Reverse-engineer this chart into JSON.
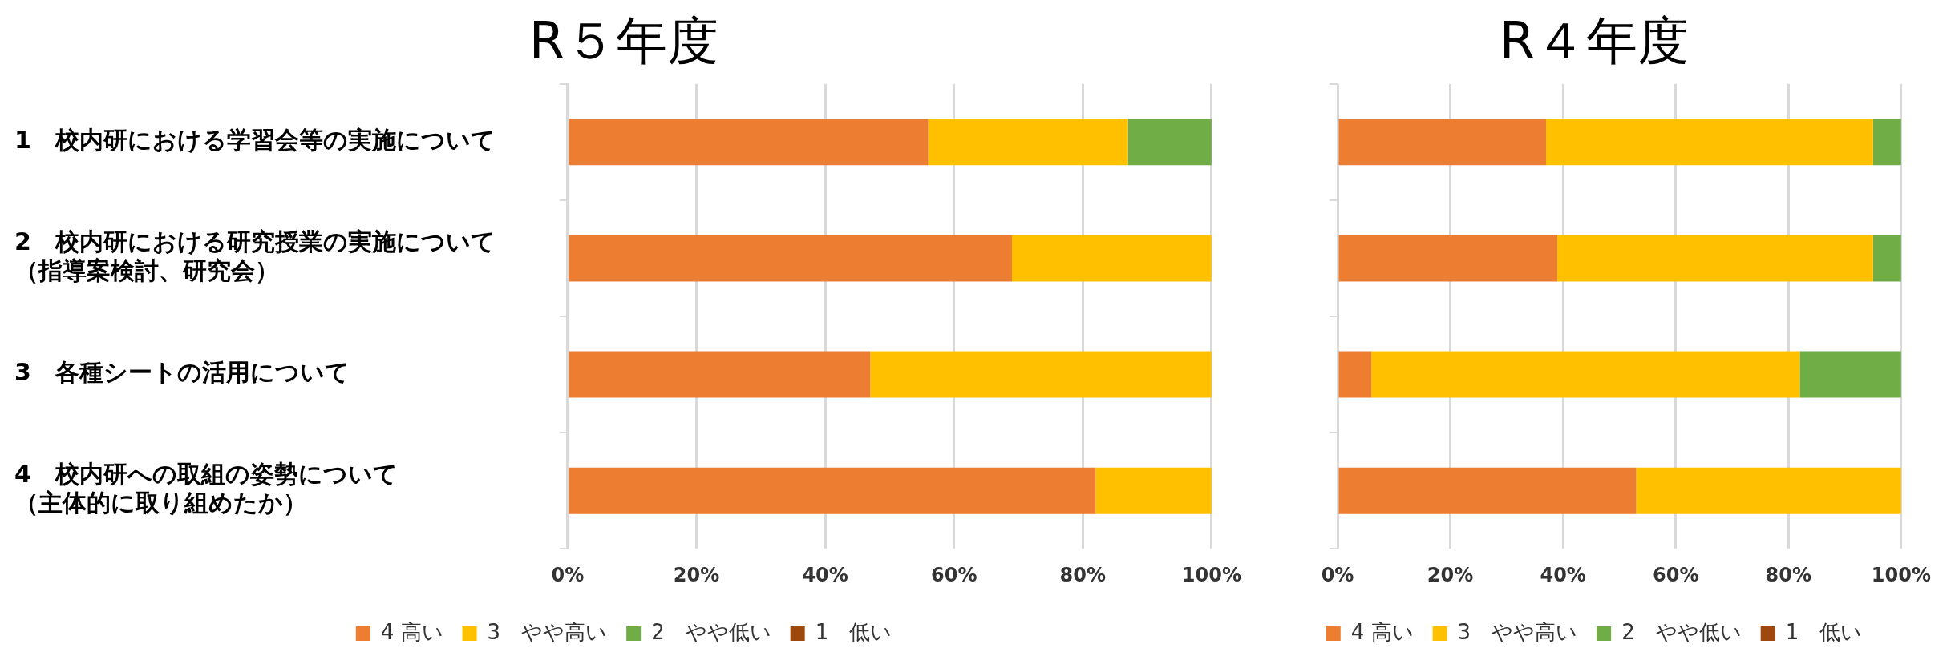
{
  "chart_data": [
    {
      "type": "bar",
      "orientation": "horizontal",
      "stacked": true,
      "title": "R５年度",
      "categories": [
        "1　校内研における学習会等の実施について",
        "2　校内研における研究授業の実施について（指導案検討、研究会）",
        "3　各種シートの活用について",
        "4　校内研への取組の姿勢について（主体的に取り組めたか）"
      ],
      "series": [
        {
          "name": "4 高い",
          "color": "#ed7d31",
          "values": [
            56,
            69,
            47,
            82
          ]
        },
        {
          "name": "3　やや高い",
          "color": "#ffc000",
          "values": [
            31,
            31,
            53,
            18
          ]
        },
        {
          "name": "2　やや低い",
          "color": "#70ad47",
          "values": [
            13,
            0,
            0,
            0
          ]
        },
        {
          "name": "1　低い",
          "color": "#9e480e",
          "values": [
            0,
            0,
            0,
            0
          ]
        }
      ],
      "xlim": [
        0,
        100
      ],
      "xticks": [
        {
          "value": 0,
          "label": "0%"
        },
        {
          "value": 20,
          "label": "20%"
        },
        {
          "value": 40,
          "label": "40%"
        },
        {
          "value": 60,
          "label": "60%"
        },
        {
          "value": 80,
          "label": "80%"
        },
        {
          "value": 100,
          "label": "100%"
        }
      ],
      "grid": "x",
      "legend": "bottom"
    },
    {
      "type": "bar",
      "orientation": "horizontal",
      "stacked": true,
      "title": "R４年度",
      "categories": [
        null,
        null,
        null,
        null
      ],
      "series": [
        {
          "name": "4 高い",
          "color": "#ed7d31",
          "values": [
            37,
            39,
            6,
            53
          ]
        },
        {
          "name": "3　やや高い",
          "color": "#ffc000",
          "values": [
            58,
            56,
            76,
            47
          ]
        },
        {
          "name": "2　やや低い",
          "color": "#70ad47",
          "values": [
            5,
            5,
            18,
            0
          ]
        },
        {
          "name": "1　低い",
          "color": "#9e480e",
          "values": [
            0,
            0,
            0,
            0
          ]
        }
      ],
      "xlim": [
        0,
        100
      ],
      "xticks": [
        {
          "value": 0,
          "label": "0%"
        },
        {
          "value": 20,
          "label": "20%"
        },
        {
          "value": 40,
          "label": "40%"
        },
        {
          "value": 60,
          "label": "60%"
        },
        {
          "value": 80,
          "label": "80%"
        },
        {
          "value": 100,
          "label": "100%"
        }
      ],
      "grid": "x",
      "legend": "bottom"
    }
  ]
}
